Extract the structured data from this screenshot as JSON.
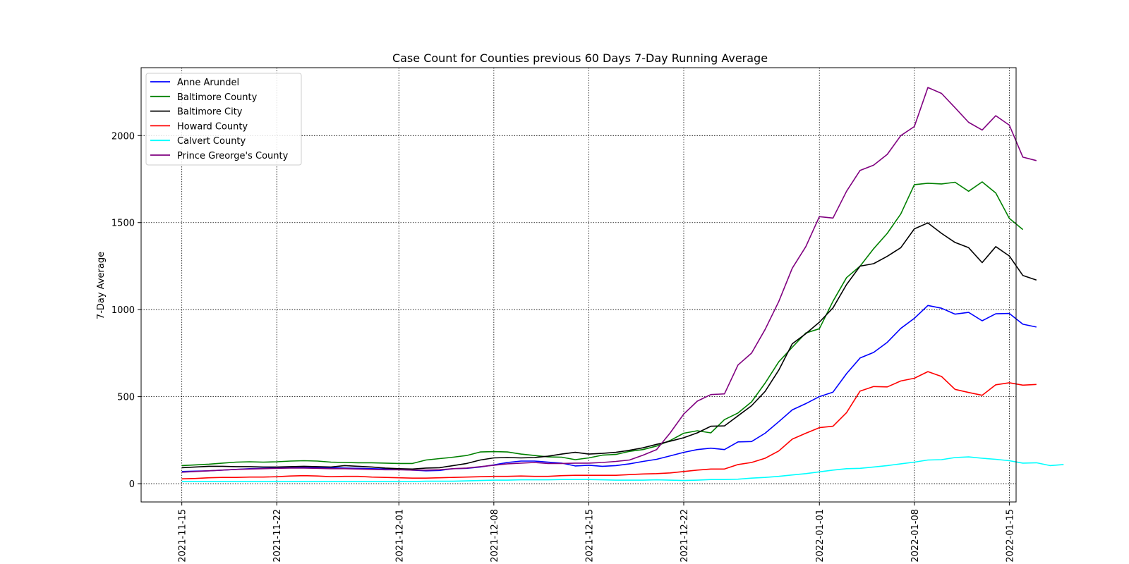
{
  "chart_data": {
    "type": "line",
    "title": "Case Count for Counties previous 60 Days 7-Day Running Average",
    "xlabel": "",
    "ylabel": "7-Day Average",
    "x_start": "2021-11-15",
    "x_ticks": [
      "2021-11-15",
      "2021-11-22",
      "2021-12-01",
      "2021-12-08",
      "2021-12-15",
      "2021-12-22",
      "2022-01-01",
      "2022-01-08",
      "2022-01-15"
    ],
    "y_ticks": [
      0,
      500,
      1000,
      1500,
      2000
    ],
    "ylim": [
      -105,
      2390
    ],
    "grid": true,
    "legend_position": "upper-left",
    "series": [
      {
        "name": "Anne Arundel",
        "color": "#0000ff",
        "values": [
          70,
          72,
          74,
          78,
          82,
          86,
          88,
          92,
          95,
          96,
          94,
          92,
          90,
          88,
          86,
          84,
          82,
          78,
          74,
          76,
          86,
          88,
          96,
          108,
          122,
          130,
          130,
          124,
          118,
          102,
          106,
          100,
          104,
          114,
          128,
          140,
          160,
          180,
          196,
          204,
          196,
          240,
          242,
          290,
          356,
          424,
          460,
          500,
          526,
          632,
          722,
          754,
          812,
          892,
          950,
          1024,
          1008,
          974,
          984,
          936,
          976,
          978,
          916,
          900
        ]
      },
      {
        "name": "Baltimore County",
        "color": "#008000",
        "values": [
          104,
          108,
          112,
          118,
          124,
          126,
          124,
          126,
          130,
          132,
          130,
          124,
          122,
          120,
          120,
          118,
          116,
          116,
          136,
          144,
          152,
          162,
          182,
          184,
          182,
          170,
          162,
          154,
          152,
          138,
          148,
          164,
          168,
          186,
          196,
          216,
          248,
          290,
          304,
          292,
          368,
          406,
          470,
          578,
          700,
          784,
          866,
          890,
          1048,
          1184,
          1250,
          1350,
          1438,
          1550,
          1718,
          1726,
          1722,
          1732,
          1680,
          1734,
          1670,
          1524,
          1460
        ]
      },
      {
        "name": "Baltimore City",
        "color": "#000000",
        "values": [
          92,
          96,
          100,
          100,
          98,
          98,
          96,
          96,
          98,
          100,
          98,
          96,
          104,
          100,
          96,
          90,
          86,
          84,
          90,
          92,
          104,
          116,
          136,
          148,
          150,
          148,
          150,
          158,
          170,
          180,
          170,
          174,
          180,
          192,
          206,
          226,
          244,
          264,
          292,
          330,
          332,
          390,
          448,
          530,
          652,
          804,
          862,
          928,
          1010,
          1144,
          1250,
          1264,
          1306,
          1356,
          1464,
          1498,
          1438,
          1386,
          1356,
          1270,
          1362,
          1308,
          1196,
          1170
        ]
      },
      {
        "name": "Howard County",
        "color": "#ff0000",
        "values": [
          28,
          30,
          34,
          36,
          36,
          38,
          38,
          40,
          44,
          46,
          44,
          40,
          42,
          42,
          38,
          36,
          34,
          32,
          32,
          34,
          36,
          38,
          40,
          42,
          42,
          44,
          42,
          42,
          46,
          48,
          48,
          48,
          48,
          52,
          56,
          58,
          62,
          70,
          78,
          84,
          84,
          110,
          122,
          146,
          188,
          256,
          290,
          322,
          330,
          408,
          532,
          558,
          556,
          590,
          606,
          644,
          616,
          542,
          524,
          508,
          568,
          580,
          566,
          570
        ]
      },
      {
        "name": "Calvert County",
        "color": "#00ffff",
        "values": [
          12,
          12,
          12,
          12,
          12,
          12,
          12,
          12,
          12,
          12,
          12,
          12,
          12,
          12,
          12,
          12,
          12,
          12,
          14,
          14,
          14,
          16,
          18,
          20,
          20,
          22,
          22,
          22,
          24,
          24,
          24,
          22,
          20,
          20,
          20,
          22,
          20,
          18,
          20,
          24,
          24,
          26,
          32,
          36,
          42,
          50,
          58,
          68,
          78,
          86,
          88,
          96,
          104,
          114,
          124,
          136,
          138,
          150,
          154,
          146,
          140,
          132,
          118,
          120,
          104,
          110
        ]
      },
      {
        "name": "Prince Greorge's County",
        "color": "#800080",
        "values": [
          66,
          70,
          74,
          78,
          82,
          84,
          86,
          88,
          90,
          90,
          88,
          86,
          86,
          84,
          82,
          80,
          80,
          78,
          78,
          80,
          86,
          90,
          98,
          106,
          114,
          118,
          122,
          116,
          116,
          118,
          118,
          122,
          128,
          136,
          164,
          196,
          292,
          400,
          474,
          512,
          516,
          682,
          750,
          886,
          1046,
          1238,
          1362,
          1534,
          1526,
          1680,
          1800,
          1830,
          1892,
          2000,
          2052,
          2276,
          2242,
          2160,
          2076,
          2032,
          2114,
          2060,
          1876,
          1856
        ]
      }
    ]
  }
}
